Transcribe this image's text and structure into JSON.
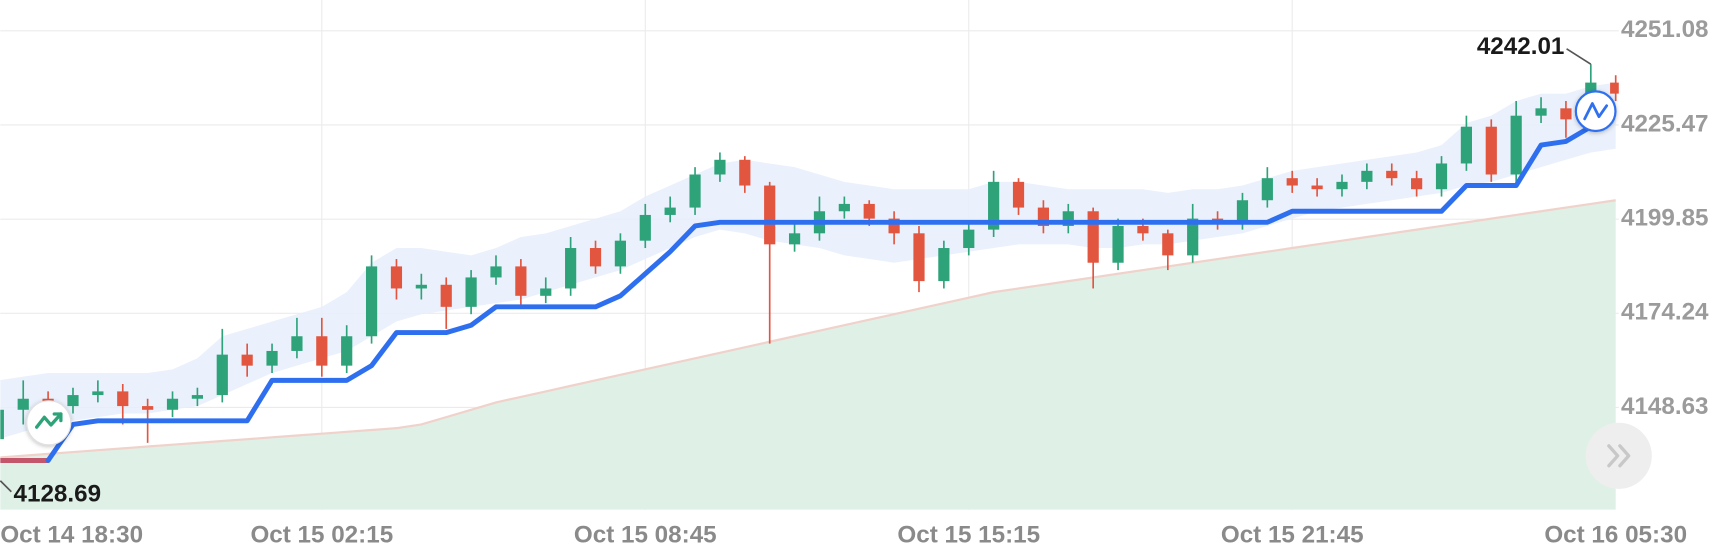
{
  "chart_data": {
    "type": "candlestick",
    "categories": [
      "Oct 14 18:30",
      null,
      null,
      null,
      null,
      null,
      null,
      null,
      null,
      null,
      null,
      null,
      null,
      "Oct 15 02:15",
      null,
      null,
      null,
      null,
      null,
      null,
      null,
      null,
      null,
      null,
      null,
      null,
      "Oct 15 08:45",
      null,
      null,
      null,
      null,
      null,
      null,
      null,
      null,
      null,
      null,
      null,
      null,
      "Oct 15 15:15",
      null,
      null,
      null,
      null,
      null,
      null,
      null,
      null,
      null,
      null,
      null,
      null,
      "Oct 15 21:45",
      null,
      null,
      null,
      null,
      null,
      null,
      null,
      null,
      null,
      null,
      null,
      null,
      "Oct 16 05:30"
    ],
    "open": [
      4140,
      4148,
      4151,
      4149,
      4152,
      4153,
      4149,
      4148,
      4151,
      4152,
      4163,
      4160,
      4164,
      4168,
      4160,
      4168,
      4187,
      4181,
      4182,
      4176,
      4184,
      4187,
      4179,
      4181,
      4192,
      4187,
      4194,
      4201,
      4203,
      4212,
      4216,
      4209,
      4193,
      4196,
      4202,
      4204,
      4200,
      4196,
      4183,
      4192,
      4197,
      4210,
      4203,
      4198,
      4202,
      4188,
      4198,
      4196,
      4190,
      4200,
      4199,
      4205,
      4211,
      4209,
      4208,
      4210,
      4213,
      4211,
      4208,
      4215,
      4225,
      4212,
      4228,
      4230,
      4227,
      4237
    ],
    "high": [
      4153,
      4156,
      4153,
      4154,
      4156,
      4155,
      4151,
      4153,
      4154,
      4170,
      4166,
      4166,
      4173,
      4173,
      4171,
      4190,
      4189,
      4185,
      4184,
      4186,
      4190,
      4189,
      4184,
      4195,
      4194,
      4196,
      4204,
      4206,
      4214,
      4218,
      4217,
      4210,
      4199,
      4206,
      4206,
      4205,
      4202,
      4198,
      4194,
      4199,
      4213,
      4211,
      4205,
      4204,
      4203,
      4200,
      4200,
      4197,
      4204,
      4202,
      4207,
      4214,
      4213,
      4211,
      4212,
      4215,
      4215,
      4213,
      4217,
      4228,
      4227,
      4232,
      4233,
      4232,
      4242.01,
      4239
    ],
    "low": [
      4128.69,
      4144,
      4146,
      4147,
      4150,
      4144,
      4139,
      4146,
      4149,
      4150,
      4157,
      4158,
      4162,
      4157,
      4158,
      4166,
      4178,
      4178,
      4170,
      4174,
      4182,
      4176,
      4177,
      4179,
      4185,
      4185,
      4192,
      4199,
      4201,
      4210,
      4207,
      4166,
      4191,
      4194,
      4200,
      4198,
      4193,
      4180,
      4181,
      4190,
      4195,
      4201,
      4196,
      4196,
      4181,
      4186,
      4194,
      4186,
      4188,
      4197,
      4197,
      4203,
      4207,
      4206,
      4206,
      4208,
      4209,
      4206,
      4206,
      4213,
      4210,
      4210,
      4226,
      4222,
      4225,
      4232
    ],
    "close": [
      4148,
      4151,
      4149,
      4152,
      4153,
      4149,
      4148,
      4151,
      4152,
      4163,
      4160,
      4164,
      4168,
      4160,
      4168,
      4187,
      4181,
      4182,
      4176,
      4184,
      4187,
      4179,
      4181,
      4192,
      4187,
      4194,
      4201,
      4203,
      4212,
      4216,
      4209,
      4193,
      4196,
      4202,
      4204,
      4200,
      4196,
      4183,
      4192,
      4197,
      4210,
      4203,
      4198,
      4202,
      4188,
      4198,
      4196,
      4190,
      4200,
      4199,
      4205,
      4211,
      4209,
      4208,
      4210,
      4213,
      4211,
      4208,
      4215,
      4225,
      4212,
      4228,
      4230,
      4227,
      4237,
      4234
    ],
    "up_color": "#2ea37a",
    "down_color": "#e2553f",
    "band": {
      "color": "#e6effc",
      "upper": [
        4156,
        4157,
        4158,
        4158,
        4158,
        4158,
        4158,
        4159,
        4162,
        4168,
        4170,
        4172,
        4174,
        4176,
        4180,
        4188,
        4192,
        4192,
        4191,
        4190,
        4192,
        4195,
        4196,
        4198,
        4200,
        4202,
        4206,
        4209,
        4212,
        4215,
        4216,
        4215,
        4214,
        4212,
        4210,
        4209,
        4208,
        4208,
        4208,
        4208,
        4210,
        4210,
        4209,
        4208,
        4208,
        4208,
        4208,
        4207,
        4208,
        4208,
        4209,
        4211,
        4213,
        4214,
        4215,
        4216,
        4217,
        4218,
        4220,
        4226,
        4228,
        4232,
        4234,
        4234,
        4236,
        4237
      ],
      "lower": [
        4140,
        4142,
        4144,
        4145,
        4146,
        4147,
        4147,
        4148,
        4149,
        4152,
        4155,
        4158,
        4160,
        4162,
        4164,
        4168,
        4172,
        4174,
        4175,
        4176,
        4177,
        4178,
        4180,
        4182,
        4184,
        4186,
        4189,
        4192,
        4195,
        4197,
        4196,
        4194,
        4193,
        4192,
        4190,
        4189,
        4188,
        4189,
        4190,
        4191,
        4192,
        4193,
        4193,
        4193,
        4192,
        4192,
        4193,
        4193,
        4194,
        4195,
        4196,
        4198,
        4200,
        4202,
        4203,
        4204,
        4205,
        4206,
        4207,
        4209,
        4210,
        4212,
        4214,
        4216,
        4218,
        4219
      ]
    },
    "area": {
      "color": "#dff0e7",
      "line_color": "#f0d2cb",
      "values": [
        4135,
        4135.5,
        4136,
        4136.5,
        4137,
        4137.5,
        4138,
        4138.5,
        4139,
        4139.5,
        4140,
        4140.5,
        4141,
        4141.5,
        4142,
        4142.5,
        4143,
        4144,
        4146,
        4148,
        4150,
        4151.5,
        4153,
        4154.5,
        4156,
        4157.5,
        4159,
        4160.5,
        4162,
        4163.5,
        4165,
        4166.5,
        4168,
        4169.5,
        4171,
        4172.5,
        4174,
        4175.5,
        4177,
        4178.5,
        4180,
        4181,
        4182,
        4183,
        4184,
        4185,
        4186,
        4187,
        4188,
        4189,
        4190,
        4191,
        4192,
        4193,
        4194,
        4195,
        4196,
        4197,
        4198,
        4199,
        4200,
        4201,
        4202,
        4203,
        4204,
        4205
      ]
    },
    "lines": [
      {
        "color": "#c4566b",
        "values": [
          4134.2,
          4134.2,
          4134.2,
          null,
          null,
          null,
          null,
          null,
          null,
          null,
          null,
          null,
          null,
          null,
          null,
          null,
          null,
          null,
          null,
          null,
          null,
          null,
          null,
          null,
          null,
          null,
          null,
          null,
          null,
          null,
          null,
          null,
          null,
          null,
          null,
          null,
          null,
          null,
          null,
          null,
          null,
          null,
          null,
          null,
          null,
          null,
          null,
          null,
          null,
          null,
          null,
          null,
          null,
          null,
          null,
          null,
          null,
          null,
          null,
          null,
          null,
          null,
          null,
          null,
          null,
          null
        ]
      },
      {
        "color": "#2e6ff0",
        "values": [
          null,
          null,
          4134.2,
          4144,
          4145,
          4145,
          4145,
          4145,
          4145,
          4145,
          4145,
          4156,
          4156,
          4156,
          4156,
          4160,
          4169,
          4169,
          4169,
          4171,
          4176,
          4176,
          4176,
          4176,
          4176,
          4179,
          4185,
          4191,
          4198,
          4199,
          4199,
          4199,
          4199,
          4199,
          4199,
          4199,
          4199,
          4199,
          4199,
          4199,
          4199,
          4199,
          4199,
          4199,
          4199,
          4199,
          4199,
          4199,
          4199,
          4199,
          4199,
          4199,
          4202,
          4202,
          4202,
          4202,
          4202,
          4202,
          4202,
          4209,
          4209,
          4209,
          4220,
          4221,
          4225,
          null
        ]
      }
    ],
    "high_marker": 4242.01,
    "low_marker": 4128.69,
    "ylim": [
      4120.8,
      4259.47
    ],
    "yticks": [
      4251.08,
      4225.47,
      4199.85,
      4174.24,
      4148.63
    ],
    "grid": true
  }
}
